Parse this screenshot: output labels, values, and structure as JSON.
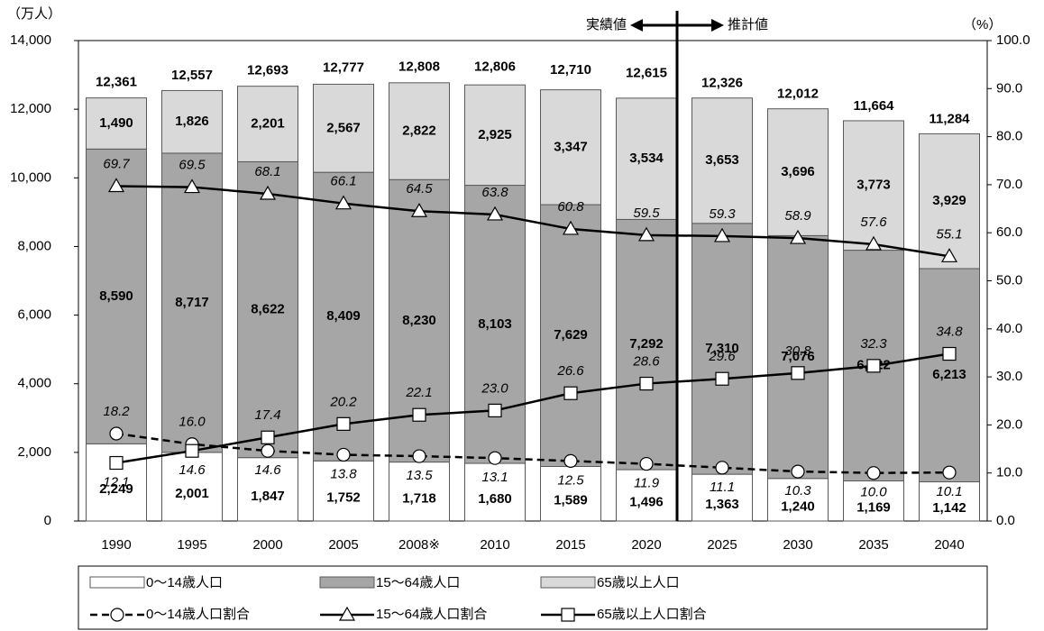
{
  "chart_data": {
    "type": "bar",
    "y_unit_label": "（万人）",
    "y2_unit_label": "（%）",
    "annotations": [
      "実績値",
      "推計値"
    ],
    "categories": [
      "1990",
      "1995",
      "2000",
      "2005",
      "2008※",
      "2010",
      "2015",
      "2020",
      "2025",
      "2030",
      "2035",
      "2040"
    ],
    "series": [
      {
        "name": "0～14歳人口",
        "type": "bar",
        "color": "#ffffff",
        "values": [
          2249,
          2001,
          1847,
          1752,
          1718,
          1680,
          1589,
          1496,
          1363,
          1240,
          1169,
          1142
        ],
        "value_labels": [
          "2,249",
          "2,001",
          "1,847",
          "1,752",
          "1,718",
          "1,680",
          "1,589",
          "1,496",
          "1,363",
          "1,240",
          "1,169",
          "1,142"
        ]
      },
      {
        "name": "15～64歳人口",
        "type": "bar",
        "color": "#a6a6a6",
        "values": [
          8590,
          8717,
          8622,
          8409,
          8230,
          8103,
          7629,
          7292,
          7310,
          7076,
          6722,
          6213
        ],
        "value_labels": [
          "8,590",
          "8,717",
          "8,622",
          "8,409",
          "8,230",
          "8,103",
          "7,629",
          "7,292",
          "7,310",
          "7,076",
          "6,722",
          "6,213"
        ]
      },
      {
        "name": "65歳以上人口",
        "type": "bar",
        "color": "#d9d9d9",
        "values": [
          1490,
          1826,
          2201,
          2567,
          2822,
          2925,
          3347,
          3534,
          3653,
          3696,
          3773,
          3929
        ],
        "value_labels": [
          "1,490",
          "1,826",
          "2,201",
          "2,567",
          "2,822",
          "2,925",
          "3,347",
          "3,534",
          "3,653",
          "3,696",
          "3,773",
          "3,929"
        ]
      },
      {
        "name": "0～14歳人口割合",
        "type": "line",
        "axis": "y2",
        "color": "#000000",
        "marker": "circle",
        "dashed": true,
        "values": [
          18.2,
          16.0,
          14.6,
          13.8,
          13.5,
          13.1,
          12.5,
          11.9,
          11.1,
          10.3,
          10.0,
          10.1
        ],
        "value_labels": [
          "18.2",
          "16.0",
          "14.6",
          "13.8",
          "13.5",
          "13.1",
          "12.5",
          "11.9",
          "11.1",
          "10.3",
          "10.0",
          "10.1"
        ]
      },
      {
        "name": "15～64歳人口割合",
        "type": "line",
        "axis": "y2",
        "color": "#000000",
        "marker": "triangle",
        "dashed": false,
        "values": [
          69.7,
          69.5,
          68.1,
          66.1,
          64.5,
          63.8,
          60.8,
          59.5,
          59.3,
          58.9,
          57.6,
          55.1
        ]
      },
      {
        "name": "65歳以上人口割合",
        "type": "line",
        "axis": "y2",
        "color": "#000000",
        "marker": "square",
        "dashed": false,
        "values": [
          12.1,
          14.6,
          17.4,
          20.2,
          22.1,
          23.0,
          26.6,
          28.6,
          29.6,
          30.8,
          32.3,
          34.8
        ],
        "value_labels": [
          "12.1",
          "14.6",
          "17.4",
          "20.2",
          "22.1",
          "23.0",
          "26.6",
          "28.6",
          "29.6",
          "30.8",
          "32.3",
          "34.8"
        ]
      }
    ],
    "totals": [
      12361,
      12557,
      12693,
      12777,
      12808,
      12806,
      12710,
      12615,
      12326,
      12012,
      11664,
      11284
    ],
    "total_labels": [
      "12,361",
      "12,557",
      "12,693",
      "12,777",
      "12,808",
      "12,806",
      "12,710",
      "12,615",
      "12,326",
      "12,012",
      "11,664",
      "11,284"
    ],
    "ylim": [
      0,
      14000
    ],
    "yticks": [
      0,
      {
        "value": 2000,
        "label": "2,000"
      },
      {
        "value": 4000,
        "label": "4,000"
      },
      {
        "value": 6000,
        "label": "6,000"
      },
      {
        "value": 8000,
        "label": "8,000"
      },
      {
        "value": 10000,
        "label": "10,000"
      },
      {
        "value": 12000,
        "label": "12,000"
      },
      {
        "value": 14000,
        "label": "14,000"
      }
    ],
    "y2lim": [
      0,
      100
    ],
    "y2ticks": [
      {
        "value": 0,
        "label": "0.0"
      },
      {
        "value": 10,
        "label": "10.0"
      },
      {
        "value": 20,
        "label": "20.0"
      },
      {
        "value": 30,
        "label": "30.0"
      },
      {
        "value": 40,
        "label": "40.0"
      },
      {
        "value": 50,
        "label": "50.0"
      },
      {
        "value": 60,
        "label": "60.0"
      },
      {
        "value": 70,
        "label": "70.0"
      },
      {
        "value": 80,
        "label": "80.0"
      },
      {
        "value": 90,
        "label": "90.0"
      },
      {
        "value": 100,
        "label": "100.0"
      }
    ],
    "grid": false
  }
}
